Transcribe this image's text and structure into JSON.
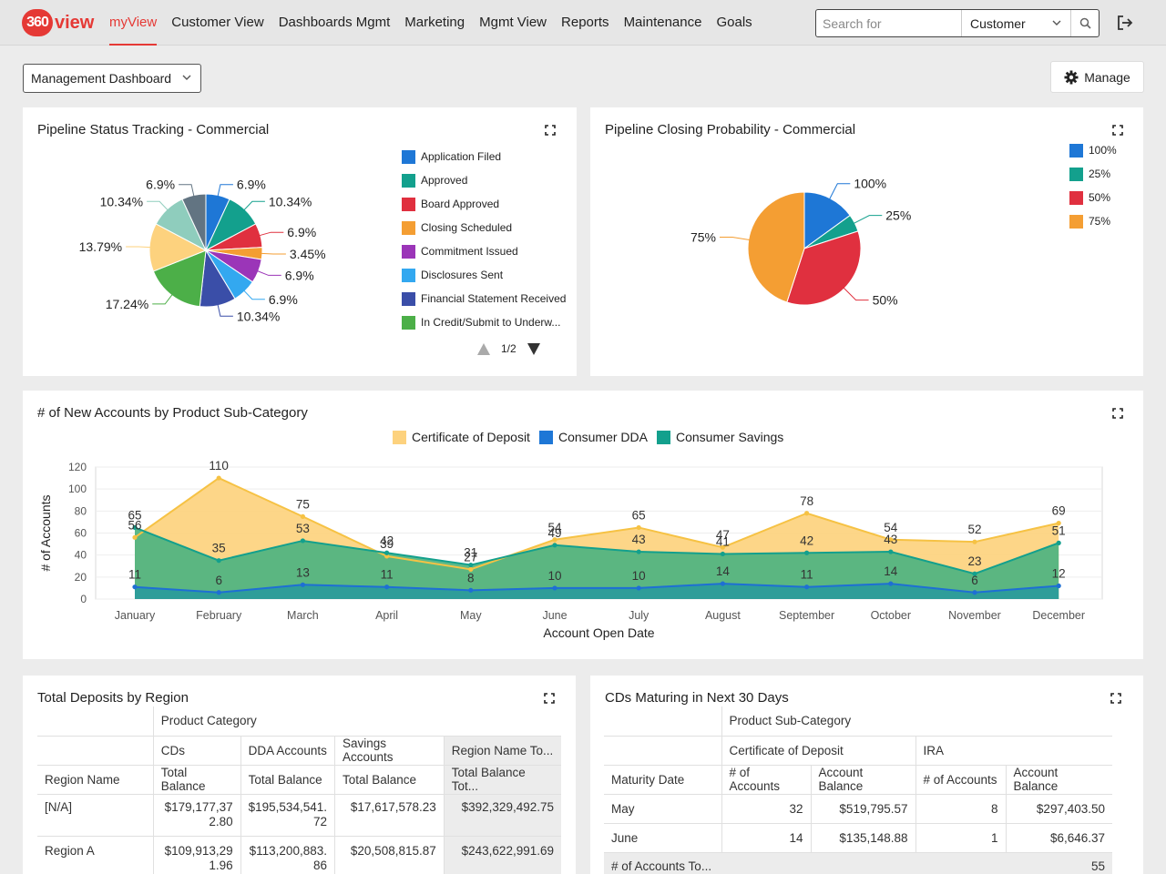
{
  "logo": {
    "number": "360",
    "text": "view"
  },
  "nav": {
    "items": [
      "myView",
      "Customer View",
      "Dashboards Mgmt",
      "Marketing",
      "Mgmt View",
      "Reports",
      "Maintenance",
      "Goals"
    ],
    "active_index": 0
  },
  "search": {
    "placeholder": "Search for",
    "scope": "Customer"
  },
  "dashboard_selector": {
    "value": "Management Dashboard"
  },
  "manage_button": {
    "label": "Manage"
  },
  "colors": {
    "accent": "#e53935",
    "application_filed": "#1e77d6",
    "approved": "#13a08d",
    "board_approved": "#e0303f",
    "closing_scheduled": "#f49e33",
    "commitment_issued": "#9b35b8",
    "disclosures_sent": "#33a8f0",
    "financial_statement_received": "#3a4ea8",
    "in_credit": "#4caf48",
    "light_teal": "#8fcdbd",
    "slate": "#627482",
    "cd_area": "#fdd27e",
    "savings_area": "#4db380",
    "dda_area": "#2a9b9b",
    "dda_line": "#1e6fd4",
    "savings_line": "#13a08d",
    "cd_line": "#f6c244"
  },
  "pipeline_status": {
    "title": "Pipeline Status Tracking - Commercial",
    "legend": [
      "Application Filed",
      "Approved",
      "Board Approved",
      "Closing Scheduled",
      "Commitment Issued",
      "Disclosures Sent",
      "Financial Statement Received",
      "In Credit/Submit to Underw..."
    ],
    "pager": "1/2",
    "chart_data": {
      "type": "pie",
      "slices": [
        {
          "value": 6.9,
          "label": "6.9%",
          "color": "#1e77d6"
        },
        {
          "value": 10.34,
          "label": "10.34%",
          "color": "#13a08d"
        },
        {
          "value": 6.9,
          "label": "6.9%",
          "color": "#e0303f"
        },
        {
          "value": 3.45,
          "label": "3.45%",
          "color": "#f49e33"
        },
        {
          "value": 6.9,
          "label": "6.9%",
          "color": "#9b35b8"
        },
        {
          "value": 6.9,
          "label": "6.9%",
          "color": "#33a8f0"
        },
        {
          "value": 10.34,
          "label": "10.34%",
          "color": "#3a4ea8"
        },
        {
          "value": 17.24,
          "label": "17.24%",
          "color": "#4caf48"
        },
        {
          "value": 13.79,
          "label": "13.79%",
          "color": "#fdd27e"
        },
        {
          "value": 10.34,
          "label": "10.34%",
          "color": "#8fcdbd"
        },
        {
          "value": 6.9,
          "label": "6.9%",
          "color": "#627482"
        }
      ]
    }
  },
  "pipeline_probability": {
    "title": "Pipeline Closing Probability - Commercial",
    "legend": [
      "100%",
      "25%",
      "50%",
      "75%"
    ],
    "chart_data": {
      "type": "pie",
      "slices": [
        {
          "value": 15,
          "label": "100%",
          "color": "#1e77d6"
        },
        {
          "value": 5,
          "label": "25%",
          "color": "#13a08d"
        },
        {
          "value": 35,
          "label": "50%",
          "color": "#e0303f"
        },
        {
          "value": 45,
          "label": "75%",
          "color": "#f49e33"
        }
      ]
    }
  },
  "new_accounts": {
    "title": "# of New Accounts by Product Sub-Category",
    "chart_data": {
      "type": "area",
      "categories": [
        "January",
        "February",
        "March",
        "April",
        "May",
        "June",
        "July",
        "August",
        "September",
        "October",
        "November",
        "December"
      ],
      "series": [
        {
          "name": "Certificate of Deposit",
          "values": [
            56,
            110,
            75,
            39,
            27,
            54,
            65,
            47,
            78,
            54,
            52,
            69
          ]
        },
        {
          "name": "Consumer DDA",
          "values": [
            11,
            6,
            13,
            11,
            8,
            10,
            10,
            14,
            11,
            14,
            6,
            12
          ]
        },
        {
          "name": "Consumer Savings",
          "values": [
            65,
            35,
            53,
            42,
            31,
            49,
            43,
            41,
            42,
            43,
            23,
            51
          ]
        }
      ],
      "ylim": [
        0,
        120
      ],
      "yticks": [
        0,
        20,
        40,
        60,
        80,
        100,
        120
      ],
      "xlabel": "Account Open Date",
      "ylabel": "# of Accounts"
    }
  },
  "deposits": {
    "title": "Total Deposits by Region",
    "product_category": "Product Category",
    "cat_headers": [
      "CDs",
      "DDA Accounts",
      "Savings Accounts",
      "Region Name To..."
    ],
    "row_header": "Region Name",
    "measure_headers": [
      "Total Balance",
      "Total Balance",
      "Total Balance",
      "Total Balance Tot..."
    ],
    "rows": [
      {
        "region": "[N/A]",
        "cd": "$179,177,37\n2.80",
        "dda": "$195,534,541.\n72",
        "savings": "$17,617,578.23",
        "total": "$392,329,492.75"
      },
      {
        "region": "Region A",
        "cd": "$109,913,29\n1.96",
        "dda": "$113,200,883.\n86",
        "savings": "$20,508,815.87",
        "total": "$243,622,991.69"
      }
    ]
  },
  "cds": {
    "title": "CDs Maturing in Next 30 Days",
    "product_sub_category": "Product Sub-Category",
    "cat_headers": [
      "Certificate of Deposit",
      "IRA"
    ],
    "row_header": "Maturity Date",
    "measure_headers": [
      "# of Accounts",
      "Account Balance",
      "# of Accounts",
      "Account Balance"
    ],
    "rows": [
      {
        "date": "May",
        "cd_accounts": "32",
        "cd_balance": "$519,795.57",
        "ira_accounts": "8",
        "ira_balance": "$297,403.50"
      },
      {
        "date": "June",
        "cd_accounts": "14",
        "cd_balance": "$135,148.88",
        "ira_accounts": "1",
        "ira_balance": "$6,646.37"
      }
    ],
    "total_label": "# of Accounts To...",
    "total_value": "55"
  }
}
